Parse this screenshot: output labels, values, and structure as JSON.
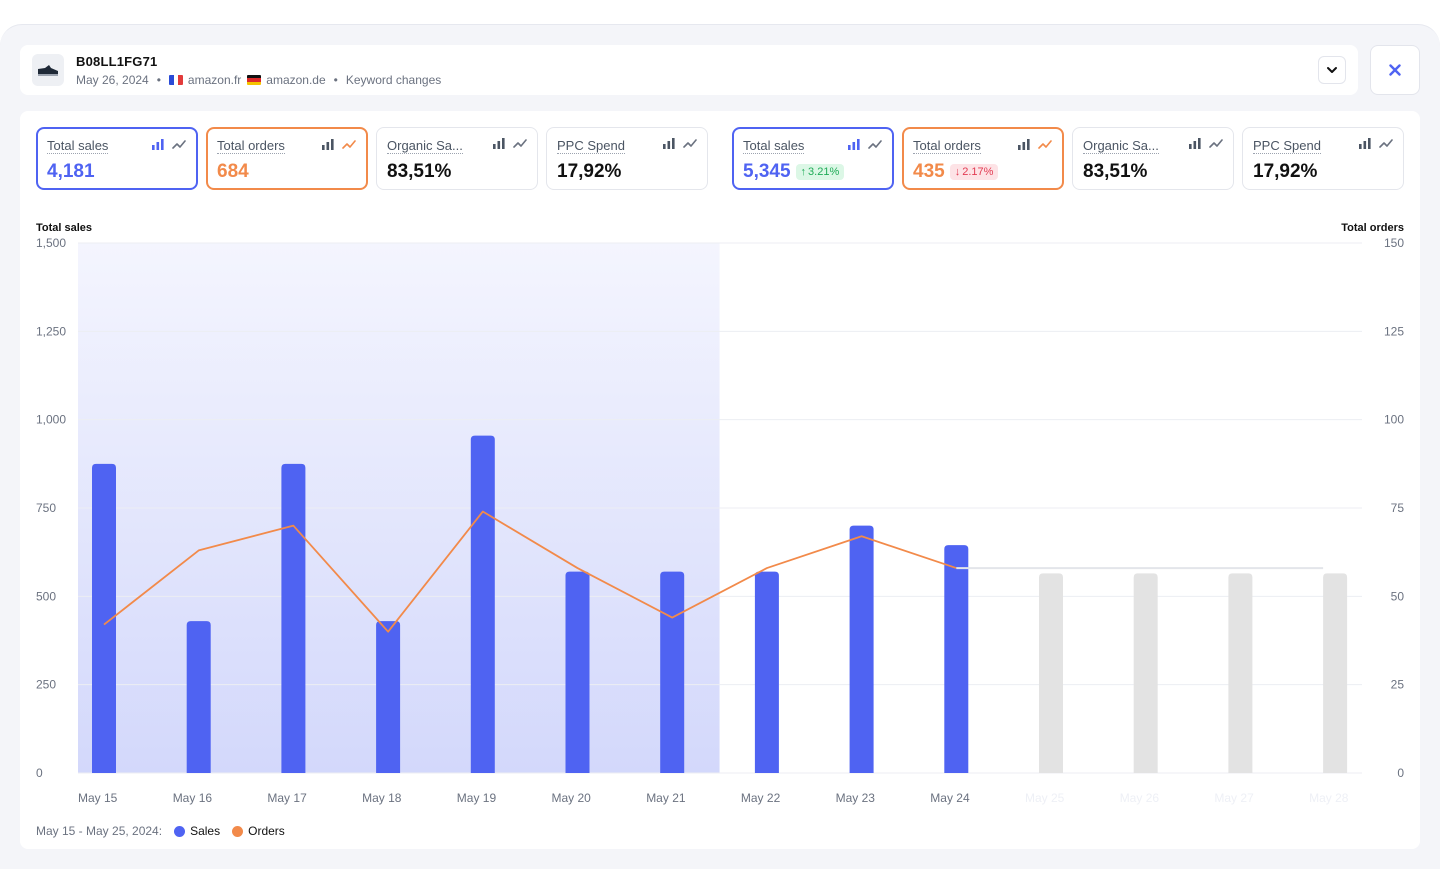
{
  "header": {
    "product_id": "B08LL1FG71",
    "date": "May 26, 2024",
    "marketplaces": [
      {
        "flag": "fr-flag-icon",
        "name": "amazon.fr"
      },
      {
        "flag": "de-flag-icon",
        "name": "amazon.de"
      }
    ],
    "keyword_changes": "Keyword changes",
    "icons": {
      "expand": "chevron-down-icon",
      "close": "close-icon",
      "product": "shoe-icon"
    }
  },
  "metrics_left": [
    {
      "label": "Total sales",
      "value": "4,181",
      "active": "blue"
    },
    {
      "label": "Total orders",
      "value": "684",
      "active": "orange"
    },
    {
      "label": "Organic Sa...",
      "value": "83,51%",
      "active": ""
    },
    {
      "label": "PPC Spend",
      "value": "17,92%",
      "active": ""
    }
  ],
  "metrics_right": [
    {
      "label": "Total sales",
      "value": "5,345",
      "active": "blue",
      "change": "3.21%",
      "direction": "up"
    },
    {
      "label": "Total orders",
      "value": "435",
      "active": "orange",
      "change": "2.17%",
      "direction": "down"
    },
    {
      "label": "Organic Sa...",
      "value": "83,51%",
      "active": ""
    },
    {
      "label": "PPC Spend",
      "value": "17,92%",
      "active": ""
    }
  ],
  "colors": {
    "sales": "#4f63f2",
    "orders": "#f28a4a",
    "forecast": "#e3e3e3",
    "highlight": "#eef0fd"
  },
  "legend": {
    "range": "May 15 - May 25, 2024:",
    "sales": "Sales",
    "orders": "Orders"
  },
  "chart_data": {
    "type": "bar",
    "xlabel": "",
    "ylabel_left": "Total sales",
    "ylabel_right": "Total orders",
    "ylim_left": [
      0,
      1500
    ],
    "ylim_right": [
      0,
      150
    ],
    "yticks_left": [
      "0",
      "250",
      "500",
      "750",
      "1,000",
      "1,250",
      "1,500"
    ],
    "yticks_right": [
      "0",
      "25",
      "50",
      "75",
      "100",
      "125",
      "150"
    ],
    "categories": [
      "May 15",
      "May 16",
      "May 17",
      "May 18",
      "May 19",
      "May 20",
      "May 21",
      "May 22",
      "May 23",
      "May 24",
      "May 25",
      "May 26",
      "May 27",
      "May 28"
    ],
    "highlighted_range": [
      "May 15",
      "May 21"
    ],
    "series": [
      {
        "name": "Sales",
        "type": "bar",
        "axis": "left",
        "values": [
          875,
          430,
          875,
          430,
          955,
          570,
          570,
          570,
          700,
          645,
          null,
          null,
          null,
          null
        ]
      },
      {
        "name": "Sales forecast",
        "type": "bar",
        "axis": "left",
        "values": [
          null,
          null,
          null,
          null,
          null,
          null,
          null,
          null,
          null,
          null,
          565,
          565,
          565,
          565
        ]
      },
      {
        "name": "Orders",
        "type": "line",
        "axis": "right",
        "values": [
          42,
          63,
          70,
          40,
          74,
          58,
          44,
          58,
          67,
          58,
          null,
          null,
          null,
          null
        ]
      },
      {
        "name": "Orders forecast",
        "type": "line",
        "axis": "right",
        "values": [
          null,
          null,
          null,
          null,
          null,
          null,
          null,
          null,
          null,
          58,
          58,
          58,
          58,
          58
        ]
      }
    ],
    "grid": true,
    "legend_position": "bottom-left"
  }
}
